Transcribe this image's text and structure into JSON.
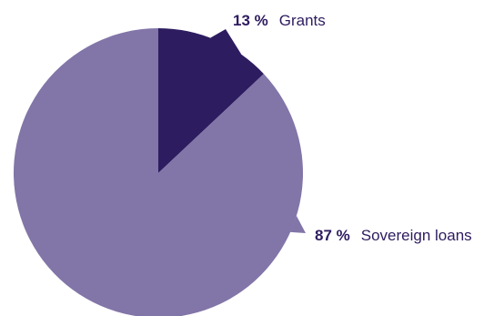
{
  "chart_data": {
    "type": "pie",
    "slices": [
      {
        "label": "Grants",
        "value": 13,
        "value_text": "13 %",
        "color": "#2e1c60"
      },
      {
        "label": "Sovereign loans",
        "value": 87,
        "value_text": "87 %",
        "color": "#8275a8"
      }
    ],
    "title": "",
    "legend": "none"
  }
}
